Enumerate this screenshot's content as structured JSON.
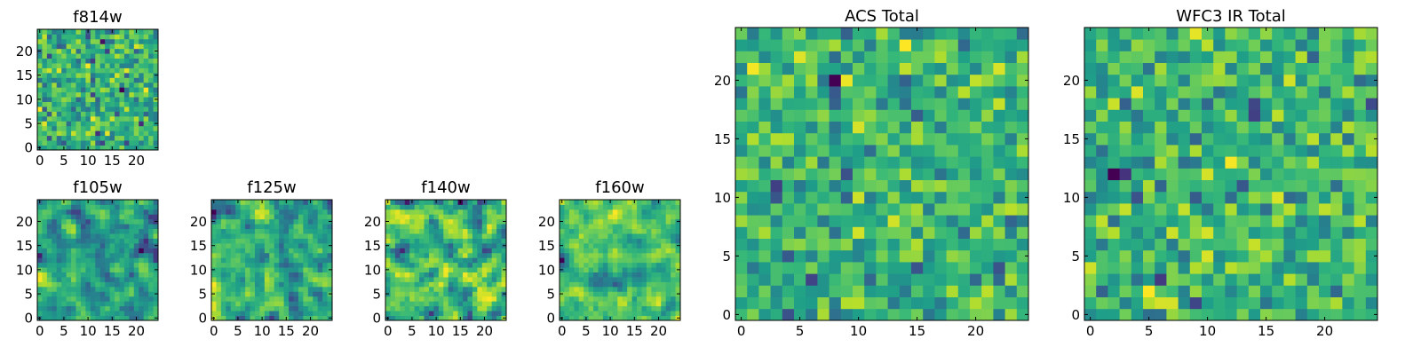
{
  "chart_data": [
    {
      "type": "heatmap",
      "title": "f814w",
      "colormap": "viridis",
      "rows": 25,
      "cols": 25,
      "xlim": [
        -0.5,
        24.5
      ],
      "ylim": [
        -0.5,
        24.5
      ],
      "xticks": [
        0,
        5,
        10,
        15,
        20
      ],
      "yticks": [
        0,
        5,
        10,
        15,
        20
      ],
      "grid": false
    },
    {
      "type": "heatmap",
      "title": "f105w",
      "colormap": "viridis",
      "rows": 25,
      "cols": 25,
      "xlim": [
        -0.5,
        24.5
      ],
      "ylim": [
        -0.5,
        24.5
      ],
      "xticks": [
        0,
        5,
        10,
        15,
        20
      ],
      "yticks": [
        0,
        5,
        10,
        15,
        20
      ],
      "grid": false
    },
    {
      "type": "heatmap",
      "title": "f125w",
      "colormap": "viridis",
      "rows": 25,
      "cols": 25,
      "xlim": [
        -0.5,
        24.5
      ],
      "ylim": [
        -0.5,
        24.5
      ],
      "xticks": [
        0,
        5,
        10,
        15,
        20
      ],
      "yticks": [
        0,
        5,
        10,
        15,
        20
      ],
      "grid": false
    },
    {
      "type": "heatmap",
      "title": "f140w",
      "colormap": "viridis",
      "rows": 25,
      "cols": 25,
      "xlim": [
        -0.5,
        24.5
      ],
      "ylim": [
        -0.5,
        24.5
      ],
      "xticks": [
        0,
        5,
        10,
        15,
        20
      ],
      "yticks": [
        0,
        5,
        10,
        15,
        20
      ],
      "grid": false
    },
    {
      "type": "heatmap",
      "title": "f160w",
      "colormap": "viridis",
      "rows": 25,
      "cols": 25,
      "xlim": [
        -0.5,
        24.5
      ],
      "ylim": [
        -0.5,
        24.5
      ],
      "xticks": [
        0,
        5,
        10,
        15,
        20
      ],
      "yticks": [
        0,
        5,
        10,
        15,
        20
      ],
      "grid": false
    },
    {
      "type": "heatmap",
      "title": "ACS Total",
      "colormap": "viridis",
      "rows": 25,
      "cols": 25,
      "xlim": [
        -0.5,
        24.5
      ],
      "ylim": [
        -0.5,
        24.5
      ],
      "xticks": [
        0,
        5,
        10,
        15,
        20
      ],
      "yticks": [
        0,
        5,
        10,
        15,
        20
      ],
      "grid": false
    },
    {
      "type": "heatmap",
      "title": "WFC3 IR Total",
      "colormap": "viridis",
      "rows": 25,
      "cols": 25,
      "xlim": [
        -0.5,
        24.5
      ],
      "ylim": [
        -0.5,
        24.5
      ],
      "xticks": [
        0,
        5,
        10,
        15,
        20
      ],
      "yticks": [
        0,
        5,
        10,
        15,
        20
      ],
      "grid": false
    }
  ]
}
